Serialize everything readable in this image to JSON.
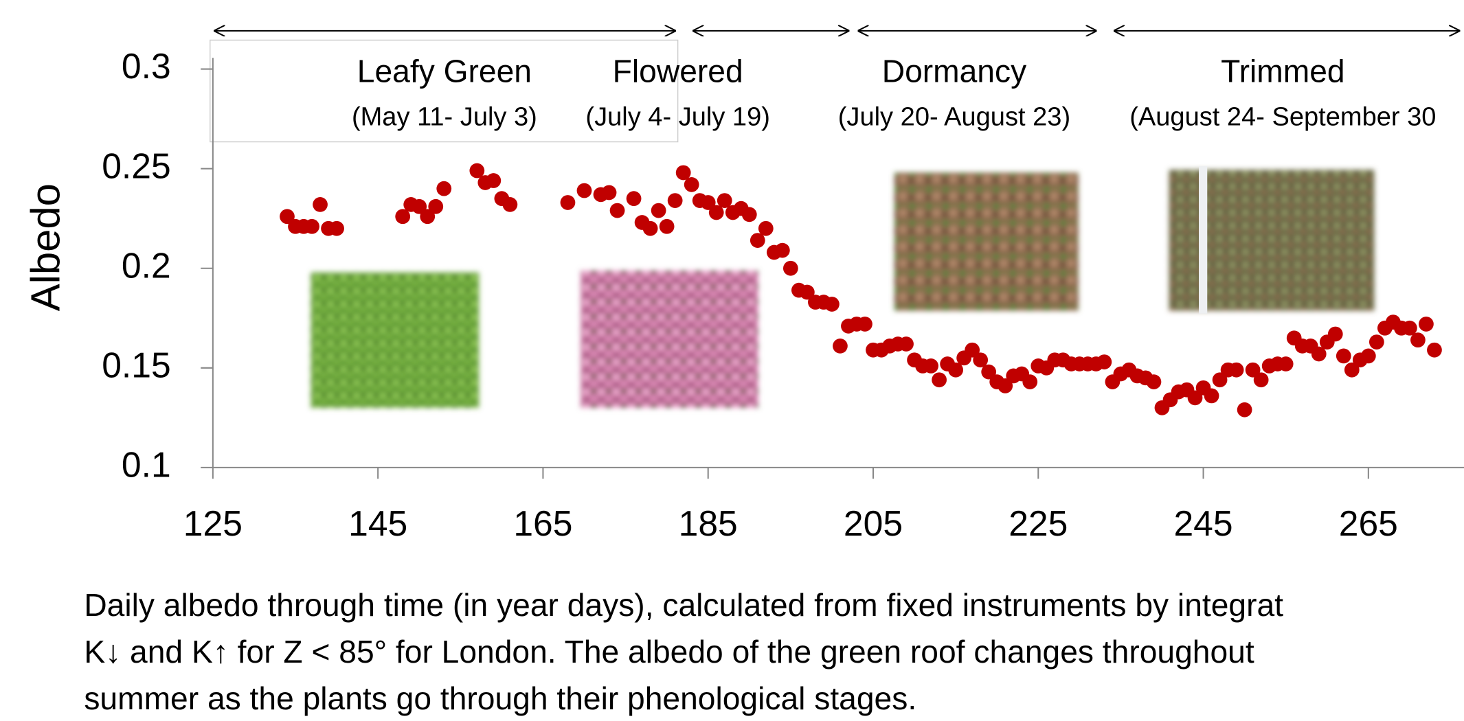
{
  "chart_data": {
    "type": "scatter",
    "y_label": "Albedo",
    "color": "#c00000",
    "xlim": [
      125,
      276
    ],
    "ylim": [
      0.1,
      0.3
    ],
    "xticks": [
      125,
      145,
      165,
      185,
      205,
      225,
      245,
      265
    ],
    "yticks": [
      0.1,
      0.15,
      0.2,
      0.25,
      0.3
    ],
    "grid": false,
    "x": [
      134,
      135,
      136,
      137,
      138,
      139,
      140,
      148,
      149,
      150,
      151,
      152,
      153,
      157,
      158,
      159,
      160,
      161,
      168,
      170,
      172,
      173,
      174,
      176,
      177,
      178,
      179,
      180,
      181,
      182,
      183,
      184,
      185,
      186,
      187,
      188,
      189,
      190,
      191,
      192,
      193,
      194,
      195,
      196,
      197,
      198,
      199,
      200,
      201,
      202,
      203,
      204,
      205,
      206,
      207,
      208,
      209,
      210,
      211,
      212,
      213,
      214,
      215,
      216,
      217,
      218,
      219,
      220,
      221,
      222,
      223,
      224,
      225,
      226,
      227,
      228,
      229,
      230,
      231,
      232,
      233,
      234,
      235,
      236,
      237,
      238,
      239,
      240,
      241,
      242,
      243,
      244,
      245,
      246,
      247,
      248,
      249,
      250,
      251,
      252,
      253,
      254,
      255,
      256,
      257,
      258,
      259,
      260,
      261,
      262,
      263,
      264,
      265,
      266,
      267,
      268,
      269,
      270,
      271,
      272,
      273
    ],
    "values": [
      0.226,
      0.221,
      0.221,
      0.221,
      0.232,
      0.22,
      0.22,
      0.226,
      0.232,
      0.231,
      0.226,
      0.231,
      0.24,
      0.249,
      0.243,
      0.244,
      0.235,
      0.232,
      0.233,
      0.239,
      0.237,
      0.238,
      0.229,
      0.235,
      0.223,
      0.22,
      0.229,
      0.221,
      0.234,
      0.248,
      0.242,
      0.234,
      0.233,
      0.228,
      0.234,
      0.228,
      0.23,
      0.227,
      0.214,
      0.22,
      0.208,
      0.209,
      0.2,
      0.189,
      0.188,
      0.183,
      0.183,
      0.182,
      0.161,
      0.171,
      0.172,
      0.172,
      0.159,
      0.159,
      0.161,
      0.162,
      0.162,
      0.154,
      0.151,
      0.151,
      0.144,
      0.152,
      0.149,
      0.155,
      0.159,
      0.154,
      0.148,
      0.143,
      0.141,
      0.146,
      0.147,
      0.143,
      0.151,
      0.15,
      0.154,
      0.154,
      0.152,
      0.152,
      0.152,
      0.152,
      0.153,
      0.143,
      0.147,
      0.149,
      0.146,
      0.145,
      0.143,
      0.13,
      0.134,
      0.138,
      0.139,
      0.135,
      0.14,
      0.136,
      0.144,
      0.149,
      0.149,
      0.129,
      0.149,
      0.144,
      0.151,
      0.152,
      0.152,
      0.165,
      0.161,
      0.161,
      0.157,
      0.163,
      0.167,
      0.156,
      0.149,
      0.154,
      0.156,
      0.163,
      0.17,
      0.173,
      0.17,
      0.17,
      0.164,
      0.172,
      0.159
    ],
    "phases": [
      {
        "name": "Leafy Green",
        "dates": "(May 11- July 3)",
        "start": 125,
        "end": 181
      },
      {
        "name": "Flowered",
        "dates": "(July 4- July 19)",
        "start": 183,
        "end": 202
      },
      {
        "name": "Dormancy",
        "dates": "(July 20- August 23)",
        "start": 203,
        "end": 232
      },
      {
        "name": "Trimmed",
        "dates": "(August 24- September 30",
        "start": 234,
        "end": 276
      }
    ],
    "caption": [
      "Daily albedo through time (in year days), calculated from fixed instruments by integrat",
      "K↓ and K↑ for Z < 85° for London.  The albedo of the green roof changes throughout",
      "summer as the plants go through their phenological stages."
    ]
  }
}
